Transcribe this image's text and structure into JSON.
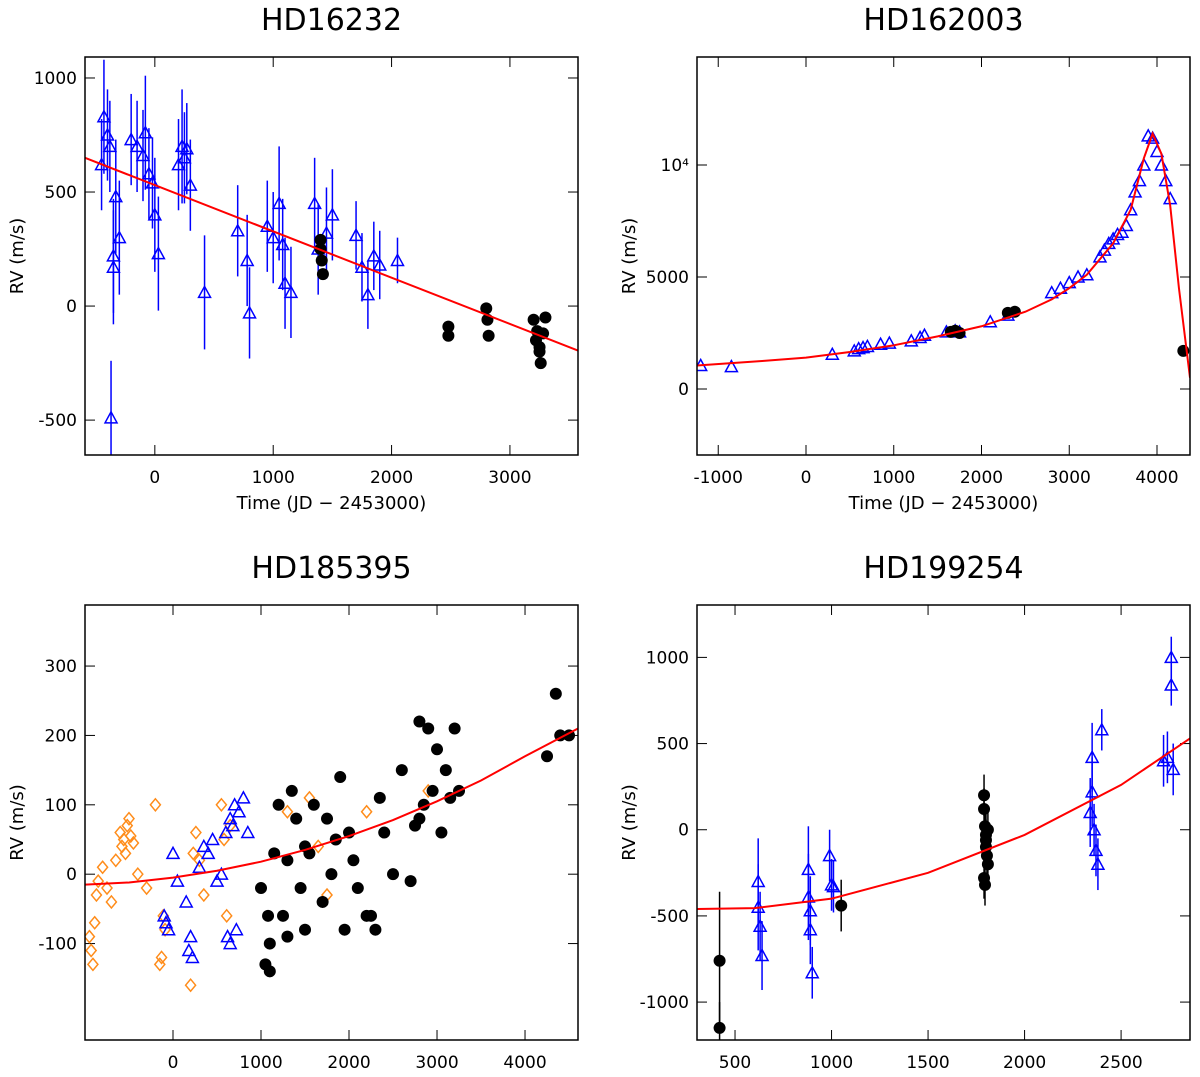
{
  "chart_data": [
    {
      "type": "scatter",
      "title": "HD16232",
      "x_label": "Time (JD − 2453000)",
      "y_label": "RV (m/s)",
      "xlim": [
        -590,
        3575
      ],
      "ylim": [
        -653,
        1092
      ],
      "xticks": [
        0,
        1000,
        2000,
        3000
      ],
      "yticks": [
        -500,
        0,
        500,
        1000
      ],
      "series": [
        {
          "marker": "triangle",
          "color": "#0000ff",
          "x": [
            -450,
            -430,
            -400,
            -380,
            -350,
            -330,
            -300,
            -200,
            -150,
            -100,
            -80,
            -50,
            -20,
            0,
            30,
            200,
            230,
            250,
            270,
            300,
            420,
            700,
            780,
            800,
            950,
            1050,
            1080,
            1100,
            1150,
            1350,
            1380,
            1450,
            1500,
            1700,
            1750,
            1800,
            1850,
            1900,
            2050,
            -370,
            -350,
            1000
          ],
          "values": [
            620,
            830,
            750,
            700,
            220,
            480,
            300,
            730,
            700,
            660,
            760,
            580,
            540,
            400,
            230,
            620,
            700,
            650,
            690,
            530,
            60,
            330,
            200,
            -30,
            350,
            450,
            270,
            100,
            60,
            450,
            250,
            320,
            400,
            310,
            170,
            50,
            220,
            180,
            200,
            -490,
            170,
            300
          ],
          "errors": [
            200,
            250,
            200,
            200,
            250,
            250,
            250,
            200,
            200,
            200,
            250,
            200,
            200,
            250,
            250,
            200,
            250,
            200,
            200,
            200,
            250,
            200,
            200,
            200,
            200,
            250,
            200,
            200,
            200,
            200,
            200,
            200,
            200,
            150,
            150,
            150,
            150,
            150,
            100,
            250,
            250,
            200
          ]
        },
        {
          "marker": "circle",
          "color": "#000000",
          "x": [
            1400,
            1400,
            1410,
            1420,
            2480,
            2480,
            2800,
            2810,
            2820,
            3200,
            3220,
            3250,
            3260,
            3280,
            3300,
            3230,
            3250
          ],
          "values": [
            290,
            250,
            200,
            140,
            -90,
            -130,
            -10,
            -60,
            -130,
            -60,
            -150,
            -180,
            -250,
            -120,
            -50,
            -110,
            -200
          ]
        },
        {
          "marker": "line",
          "color": "#ff0000",
          "x": [
            -590,
            3575
          ],
          "values": [
            650,
            -195
          ]
        }
      ]
    },
    {
      "type": "scatter",
      "title": "HD162003",
      "x_label": "Time (JD − 2453000)",
      "y_label": "RV (m/s)",
      "xlim": [
        -1242,
        4376
      ],
      "ylim": [
        -2946,
        14821
      ],
      "xticks": [
        -1000,
        0,
        1000,
        2000,
        3000,
        4000
      ],
      "yticks": [
        0,
        5000,
        {
          "value": 10000,
          "label": "10⁴"
        }
      ],
      "series": [
        {
          "marker": "triangle",
          "color": "#0000ff",
          "x": [
            -1200,
            -850,
            300,
            550,
            600,
            650,
            700,
            850,
            950,
            1200,
            1300,
            1350,
            1600,
            1700,
            1750,
            2100,
            2300,
            2800,
            2900,
            3000,
            3100,
            3200,
            3350,
            3400,
            3450,
            3500,
            3550,
            3600,
            3650,
            3700,
            3750,
            3800,
            3850,
            3900,
            3950,
            4000,
            4050,
            4100,
            4150
          ],
          "values": [
            1050,
            1000,
            1550,
            1700,
            1800,
            1850,
            1900,
            2000,
            2050,
            2150,
            2300,
            2400,
            2550,
            2600,
            2550,
            3000,
            3300,
            4300,
            4500,
            4750,
            5000,
            5100,
            5900,
            6200,
            6500,
            6700,
            6900,
            7000,
            7300,
            8000,
            8800,
            9300,
            10000,
            11300,
            11200,
            10600,
            10000,
            9300,
            8500
          ]
        },
        {
          "marker": "circle",
          "color": "#000000",
          "x": [
            1650,
            1700,
            1750,
            2300,
            2380,
            4300
          ],
          "values": [
            2550,
            2600,
            2500,
            3400,
            3450,
            1700
          ]
        },
        {
          "marker": "line",
          "color": "#ff0000",
          "x": [
            -1242,
            -500,
            0,
            500,
            1000,
            1500,
            2000,
            2500,
            2800,
            3000,
            3200,
            3500,
            3700,
            3850,
            3950,
            4050,
            4150,
            4250,
            4376
          ],
          "values": [
            1050,
            1250,
            1400,
            1650,
            1950,
            2350,
            2800,
            3450,
            4000,
            4500,
            5100,
            6500,
            8000,
            10300,
            11400,
            10500,
            8200,
            4500,
            500
          ]
        }
      ]
    },
    {
      "type": "scatter",
      "title": "HD185395",
      "x_label": "Time (JD − 2453000)",
      "y_label": "RV (m/s)",
      "xlim": [
        -1000,
        4602
      ],
      "ylim": [
        -239,
        388
      ],
      "xticks": [
        0,
        1000,
        2000,
        3000,
        4000
      ],
      "yticks": [
        -100,
        0,
        100,
        200,
        300
      ],
      "series": [
        {
          "marker": "diamond",
          "color": "#ff8c1a",
          "x": [
            -950,
            -930,
            -910,
            -890,
            -870,
            -850,
            -800,
            -750,
            -700,
            -650,
            -600,
            -580,
            -560,
            -540,
            -520,
            -500,
            -480,
            -450,
            -400,
            -300,
            -200,
            -150,
            -130,
            -110,
            -90,
            200,
            230,
            260,
            300,
            350,
            550,
            580,
            610,
            650,
            1300,
            1550,
            1650,
            1750,
            2200,
            2900
          ],
          "values": [
            -90,
            -110,
            -130,
            -70,
            -30,
            -10,
            10,
            -20,
            -40,
            20,
            60,
            40,
            50,
            30,
            70,
            80,
            55,
            45,
            0,
            -20,
            100,
            -130,
            -120,
            -60,
            -80,
            -160,
            30,
            60,
            20,
            -30,
            100,
            50,
            -60,
            70,
            90,
            110,
            40,
            -30,
            90,
            120
          ]
        },
        {
          "marker": "triangle",
          "color": "#0000ff",
          "x": [
            -100,
            -50,
            0,
            50,
            150,
            200,
            220,
            300,
            350,
            400,
            450,
            500,
            550,
            600,
            620,
            650,
            680,
            700,
            720,
            750,
            800,
            850,
            -80,
            180,
            650
          ],
          "values": [
            -60,
            -80,
            30,
            -10,
            -40,
            -90,
            -120,
            10,
            40,
            30,
            50,
            -10,
            0,
            60,
            -90,
            80,
            70,
            100,
            -80,
            90,
            110,
            60,
            -70,
            -110,
            -100
          ]
        },
        {
          "marker": "circle",
          "color": "#000000",
          "x": [
            1000,
            1050,
            1080,
            1100,
            1150,
            1200,
            1250,
            1300,
            1350,
            1400,
            1450,
            1500,
            1550,
            1600,
            1700,
            1750,
            1800,
            1850,
            1900,
            1950,
            2000,
            2050,
            2100,
            2200,
            2300,
            2350,
            2400,
            2500,
            2600,
            2700,
            2750,
            2800,
            2850,
            2900,
            2950,
            3000,
            3050,
            3100,
            3150,
            3200,
            3250,
            1100,
            1300,
            1500,
            2250,
            2800,
            4250,
            4350,
            4400,
            4500
          ],
          "values": [
            -20,
            -130,
            -60,
            -100,
            30,
            100,
            -60,
            20,
            120,
            80,
            -20,
            -80,
            30,
            100,
            -40,
            80,
            0,
            50,
            140,
            -80,
            60,
            20,
            -20,
            -60,
            -80,
            110,
            60,
            0,
            150,
            -10,
            70,
            220,
            100,
            210,
            120,
            180,
            60,
            150,
            110,
            210,
            120,
            -140,
            -90,
            40,
            -60,
            80,
            170,
            260,
            200,
            200
          ]
        },
        {
          "marker": "line",
          "color": "#ff0000",
          "x": [
            -1000,
            -500,
            0,
            500,
            1000,
            1500,
            2000,
            2500,
            3000,
            3500,
            4000,
            4602
          ],
          "values": [
            -15,
            -12,
            -5,
            5,
            18,
            35,
            55,
            78,
            105,
            135,
            170,
            210
          ]
        }
      ]
    },
    {
      "type": "scatter",
      "title": "HD199254",
      "x_label": "Time (JD − 2453000)",
      "y_label": "RV (m/s)",
      "xlim": [
        303,
        2857
      ],
      "ylim": [
        -1220,
        1304
      ],
      "xticks": [
        500,
        1000,
        1500,
        2000,
        2500
      ],
      "yticks": [
        -1000,
        -500,
        0,
        500,
        1000
      ],
      "series": [
        {
          "marker": "triangle",
          "color": "#0000ff",
          "x": [
            620,
            620,
            630,
            640,
            880,
            880,
            890,
            890,
            900,
            990,
            1000,
            1010,
            2340,
            2350,
            2350,
            2360,
            2370,
            2380,
            2400,
            2720,
            2740,
            2760,
            2760,
            2770
          ],
          "values": [
            -300,
            -450,
            -560,
            -730,
            -230,
            -390,
            -470,
            -580,
            -830,
            -150,
            -320,
            -330,
            100,
            420,
            220,
            0,
            -120,
            -200,
            580,
            400,
            420,
            1000,
            840,
            350
          ],
          "errors": [
            250,
            250,
            200,
            200,
            250,
            250,
            200,
            200,
            150,
            150,
            150,
            150,
            200,
            200,
            200,
            150,
            150,
            150,
            120,
            150,
            150,
            120,
            120,
            150
          ]
        },
        {
          "marker": "circle",
          "color": "#000000",
          "x": [
            420,
            420,
            1050,
            1790,
            1790,
            1795,
            1800,
            1800,
            1805,
            1810,
            1790,
            1795,
            1800,
            1810
          ],
          "values": [
            -760,
            -1150,
            -440,
            200,
            120,
            20,
            -30,
            -100,
            -150,
            -200,
            -280,
            -320,
            -60,
            0
          ],
          "errors": [
            400,
            150,
            150,
            120,
            120,
            120,
            120,
            120,
            120,
            120,
            120,
            120,
            120,
            120
          ]
        },
        {
          "marker": "line",
          "color": "#ff0000",
          "x": [
            303,
            600,
            1000,
            1500,
            2000,
            2500,
            2857
          ],
          "values": [
            -460,
            -455,
            -400,
            -250,
            -30,
            260,
            530
          ]
        }
      ]
    }
  ]
}
